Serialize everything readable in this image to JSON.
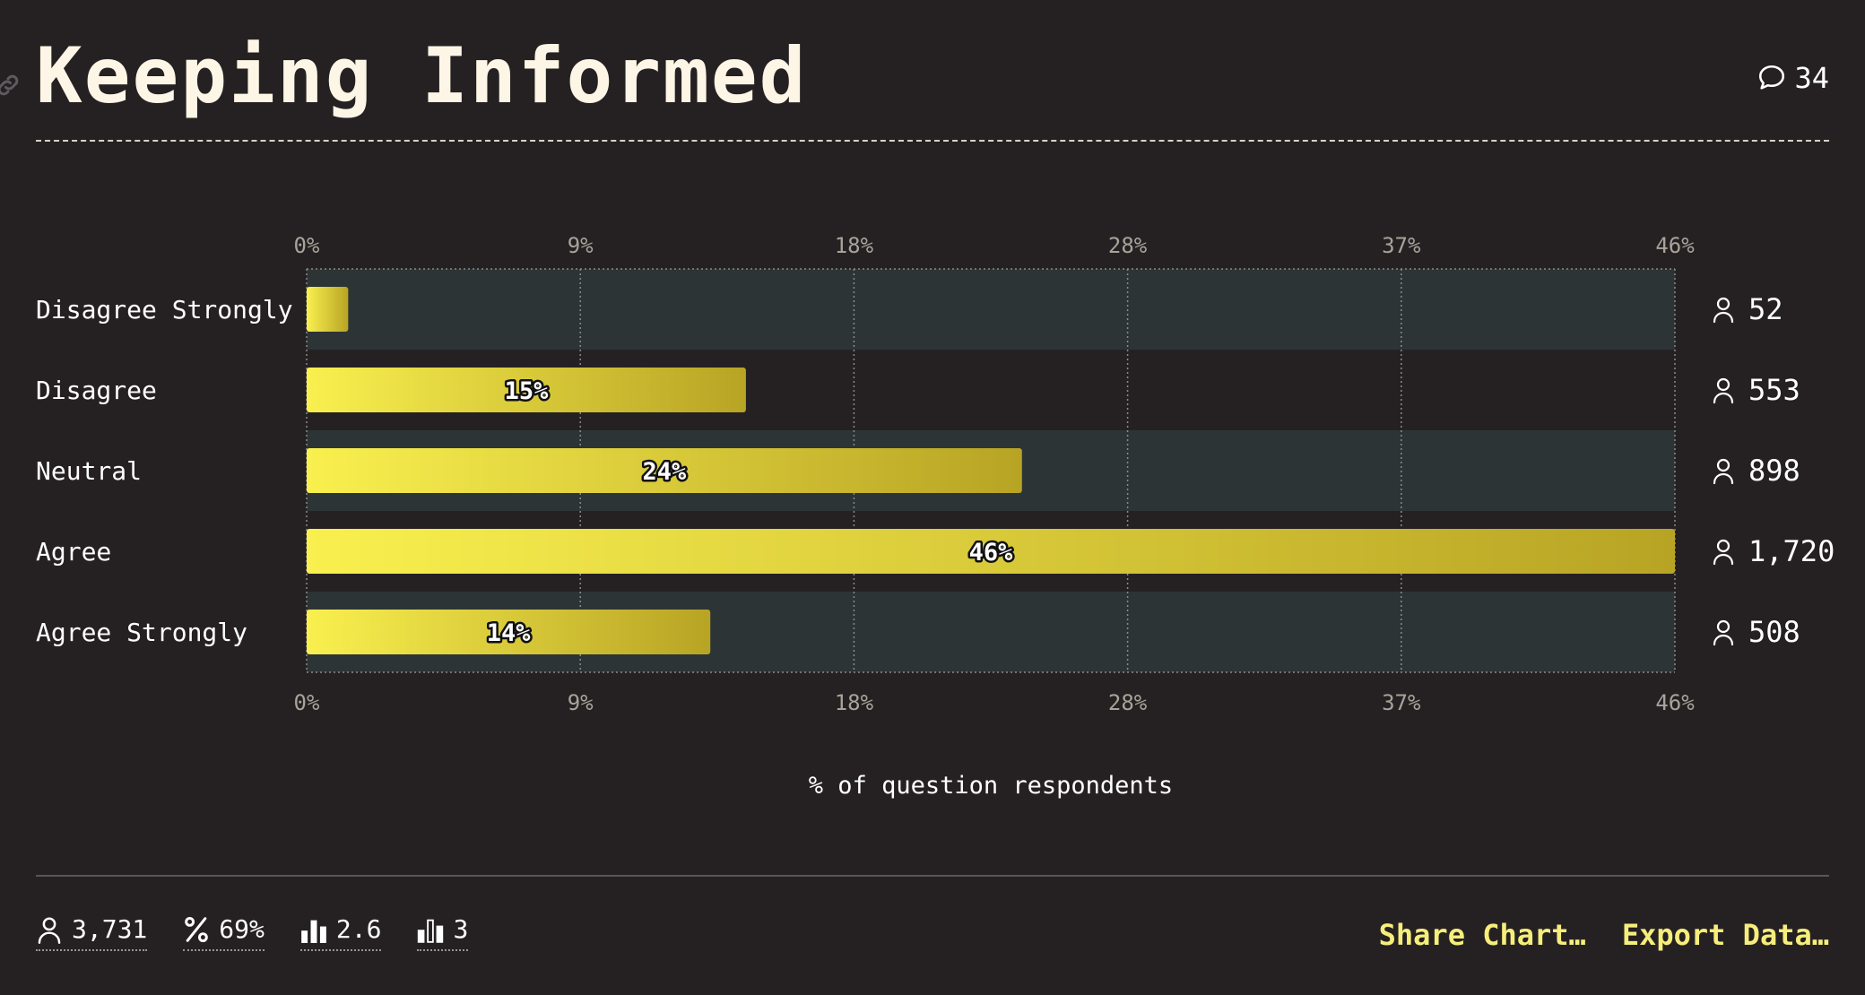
{
  "header": {
    "title": "Keeping Informed",
    "comment_count": "34"
  },
  "chart_data": {
    "type": "bar",
    "orientation": "horizontal",
    "categories": [
      "Disagree Strongly",
      "Disagree",
      "Neutral",
      "Agree",
      "Agree Strongly"
    ],
    "values": [
      1.4,
      14.8,
      24.1,
      46.1,
      13.6
    ],
    "value_labels": [
      "",
      "15%",
      "24%",
      "46%",
      "14%"
    ],
    "counts": [
      "52",
      "553",
      "898",
      "1,720",
      "508"
    ],
    "xlim": [
      0,
      46.1
    ],
    "tick_values": [
      0,
      9.22,
      18.44,
      27.66,
      36.88,
      46.1
    ],
    "tick_labels": [
      "0%",
      "9%",
      "18%",
      "28%",
      "37%",
      "46%"
    ],
    "xlabel": "% of question respondents",
    "ylabel": "",
    "title": "",
    "grid": true,
    "colors": {
      "bar_start": "#f9f04f",
      "bar_end": "#b8a424",
      "band": "#2d3436"
    }
  },
  "footer": {
    "stats": [
      {
        "icon": "person-icon",
        "value": "3,731"
      },
      {
        "icon": "percent-icon",
        "value": "69%"
      },
      {
        "icon": "bar-chart-icon",
        "value": "2.6"
      },
      {
        "icon": "bar-chart-outline-icon",
        "value": "3"
      }
    ],
    "share_label": "Share Chart…",
    "export_label": "Export Data…"
  }
}
